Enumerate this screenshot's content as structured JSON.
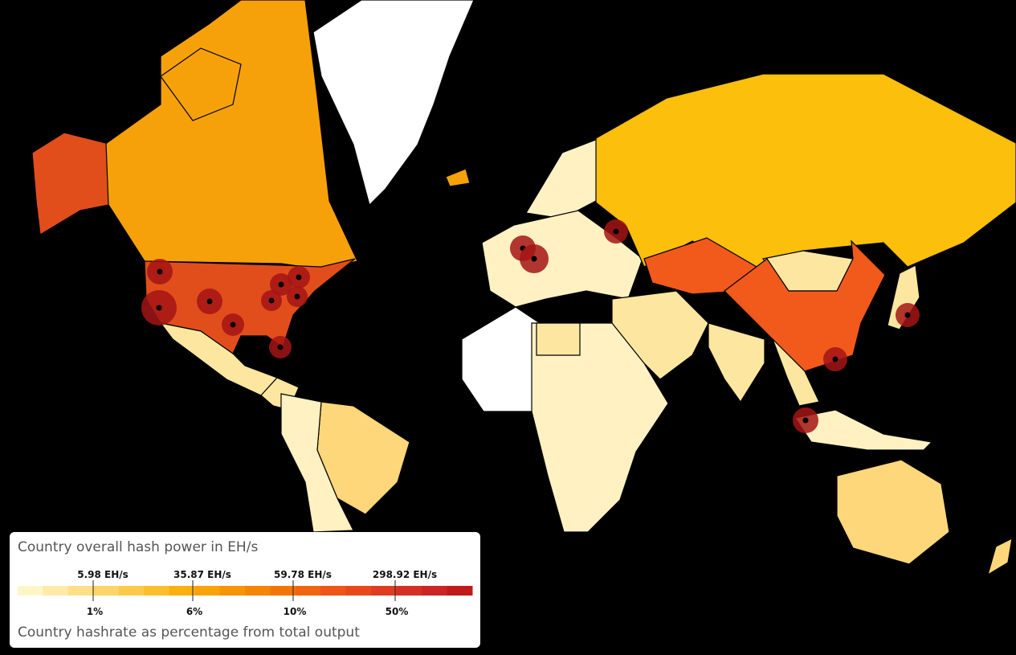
{
  "legend": {
    "title": "Country overall hash power in EH/s",
    "top_labels": [
      "5.98 EH/s",
      "35.87 EH/s",
      "59.78 EH/s",
      "298.92 EH/s"
    ],
    "bottom_labels": [
      "1%",
      "6%",
      "10%",
      "50%"
    ],
    "subtitle": "Country hashrate as percentage from total output"
  }
}
